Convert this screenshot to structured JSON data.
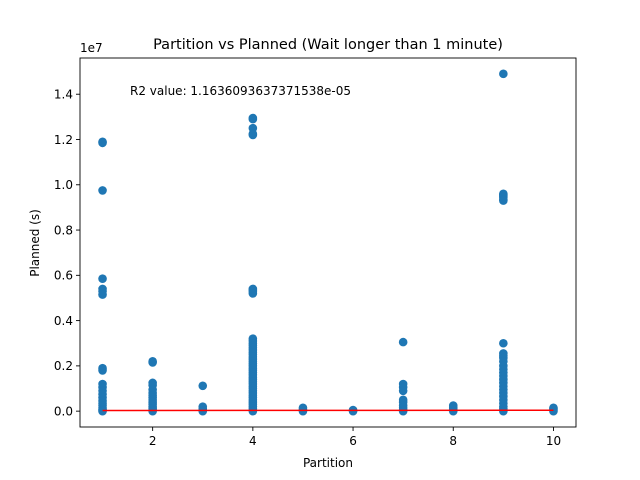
{
  "chart_data": {
    "type": "scatter",
    "title": "Partition vs Planned (Wait longer than 1 minute)",
    "xlabel": "Partition",
    "ylabel": "Planned (s)",
    "y_offset_text": "1e7",
    "annotation": "R2 value: 1.1636093637371538e-05",
    "xlim": [
      0.55,
      10.45
    ],
    "ylim": [
      -0.07,
      1.56
    ],
    "x_ticks": [
      2,
      4,
      6,
      8,
      10
    ],
    "x_tick_labels": [
      "2",
      "4",
      "6",
      "8",
      "10"
    ],
    "y_ticks": [
      0.0,
      0.2,
      0.4,
      0.6,
      0.8,
      1.0,
      1.2,
      1.4
    ],
    "y_tick_labels": [
      "0.0",
      "0.2",
      "0.4",
      "0.6",
      "0.8",
      "1.0",
      "1.2",
      "1.4"
    ],
    "grid": false,
    "colors": {
      "points": "#1f77b4",
      "regression_line": "#ff0000"
    },
    "regression_line": {
      "x": [
        1,
        10
      ],
      "y": [
        0.003,
        0.004
      ]
    },
    "series": [
      {
        "points": [
          [
            1,
            1.19
          ],
          [
            1,
            1.185
          ],
          [
            1,
            0.975
          ],
          [
            1,
            0.585
          ],
          [
            1,
            0.54
          ],
          [
            1,
            0.53
          ],
          [
            1,
            0.515
          ],
          [
            1,
            0.19
          ],
          [
            1,
            0.18
          ],
          [
            1,
            0.12
          ],
          [
            1,
            0.105
          ],
          [
            1,
            0.09
          ],
          [
            1,
            0.075
          ],
          [
            1,
            0.06
          ],
          [
            1,
            0.045
          ],
          [
            1,
            0.035
          ],
          [
            1,
            0.025
          ],
          [
            1,
            0.015
          ],
          [
            1,
            0.008
          ],
          [
            1,
            0.003
          ],
          [
            1,
            0.0
          ],
          [
            2,
            0.22
          ],
          [
            2,
            0.215
          ],
          [
            2,
            0.125
          ],
          [
            2,
            0.115
          ],
          [
            2,
            0.095
          ],
          [
            2,
            0.08
          ],
          [
            2,
            0.07
          ],
          [
            2,
            0.06
          ],
          [
            2,
            0.05
          ],
          [
            2,
            0.04
          ],
          [
            2,
            0.03
          ],
          [
            2,
            0.02
          ],
          [
            2,
            0.012
          ],
          [
            2,
            0.005
          ],
          [
            2,
            0.0
          ],
          [
            3,
            0.112
          ],
          [
            3,
            0.02
          ],
          [
            3,
            0.01
          ],
          [
            3,
            0.004
          ],
          [
            3,
            0.0
          ],
          [
            4,
            1.295
          ],
          [
            4,
            1.29
          ],
          [
            4,
            1.25
          ],
          [
            4,
            1.225
          ],
          [
            4,
            1.22
          ],
          [
            4,
            0.54
          ],
          [
            4,
            0.535
          ],
          [
            4,
            0.53
          ],
          [
            4,
            0.52
          ],
          [
            4,
            0.32
          ],
          [
            4,
            0.31
          ],
          [
            4,
            0.3
          ],
          [
            4,
            0.29
          ],
          [
            4,
            0.28
          ],
          [
            4,
            0.27
          ],
          [
            4,
            0.26
          ],
          [
            4,
            0.25
          ],
          [
            4,
            0.24
          ],
          [
            4,
            0.23
          ],
          [
            4,
            0.22
          ],
          [
            4,
            0.21
          ],
          [
            4,
            0.2
          ],
          [
            4,
            0.19
          ],
          [
            4,
            0.18
          ],
          [
            4,
            0.17
          ],
          [
            4,
            0.16
          ],
          [
            4,
            0.15
          ],
          [
            4,
            0.14
          ],
          [
            4,
            0.13
          ],
          [
            4,
            0.12
          ],
          [
            4,
            0.11
          ],
          [
            4,
            0.1
          ],
          [
            4,
            0.09
          ],
          [
            4,
            0.08
          ],
          [
            4,
            0.07
          ],
          [
            4,
            0.06
          ],
          [
            4,
            0.05
          ],
          [
            4,
            0.04
          ],
          [
            4,
            0.03
          ],
          [
            4,
            0.02
          ],
          [
            4,
            0.01
          ],
          [
            4,
            0.0
          ],
          [
            5,
            0.015
          ],
          [
            5,
            0.008
          ],
          [
            5,
            0.0
          ],
          [
            6,
            0.005
          ],
          [
            6,
            0.002
          ],
          [
            6,
            0.0
          ],
          [
            7,
            0.305
          ],
          [
            7,
            0.12
          ],
          [
            7,
            0.105
          ],
          [
            7,
            0.09
          ],
          [
            7,
            0.05
          ],
          [
            7,
            0.04
          ],
          [
            7,
            0.025
          ],
          [
            7,
            0.015
          ],
          [
            7,
            0.005
          ],
          [
            7,
            0.0
          ],
          [
            8,
            0.025
          ],
          [
            8,
            0.018
          ],
          [
            8,
            0.012
          ],
          [
            8,
            0.006
          ],
          [
            8,
            0.0
          ],
          [
            9,
            1.49
          ],
          [
            9,
            0.96
          ],
          [
            9,
            0.955
          ],
          [
            9,
            0.95
          ],
          [
            9,
            0.945
          ],
          [
            9,
            0.935
          ],
          [
            9,
            0.93
          ],
          [
            9,
            0.3
          ],
          [
            9,
            0.255
          ],
          [
            9,
            0.245
          ],
          [
            9,
            0.235
          ],
          [
            9,
            0.22
          ],
          [
            9,
            0.2
          ],
          [
            9,
            0.185
          ],
          [
            9,
            0.17
          ],
          [
            9,
            0.155
          ],
          [
            9,
            0.14
          ],
          [
            9,
            0.125
          ],
          [
            9,
            0.11
          ],
          [
            9,
            0.095
          ],
          [
            9,
            0.08
          ],
          [
            9,
            0.065
          ],
          [
            9,
            0.05
          ],
          [
            9,
            0.035
          ],
          [
            9,
            0.02
          ],
          [
            9,
            0.01
          ],
          [
            9,
            0.0
          ],
          [
            10,
            0.015
          ],
          [
            10,
            0.01
          ],
          [
            10,
            0.005
          ],
          [
            10,
            0.0
          ]
        ]
      }
    ]
  }
}
